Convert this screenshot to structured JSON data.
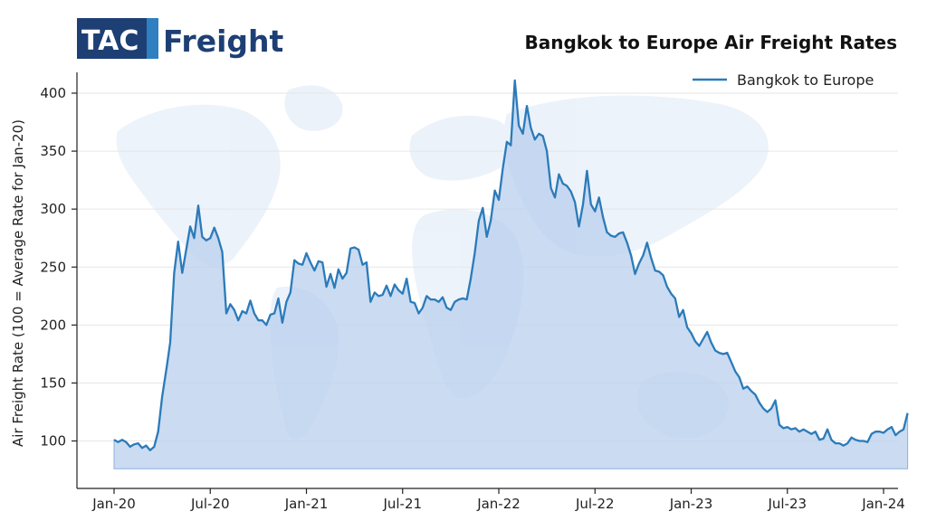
{
  "logo": {
    "tac": "TAC",
    "freight": "Freight",
    "box_color": "#1d3f74",
    "accent_color": "#2f7fc1"
  },
  "chart_data": {
    "type": "area",
    "title": "Bangkok to Europe Air Freight Rates",
    "xlabel": "",
    "ylabel": "Air Freight Rate (100 = Average Rate for Jan-20)",
    "x_ticks": [
      "Jan-20",
      "Jul-20",
      "Jan-21",
      "Jul-21",
      "Jan-22",
      "Jul-22",
      "Jan-23",
      "Jul-23",
      "Jan-24"
    ],
    "y_ticks": [
      100,
      150,
      200,
      250,
      300,
      350,
      400
    ],
    "ylim": [
      75,
      420
    ],
    "xlim_months": [
      -1,
      48
    ],
    "grid": true,
    "legend_position": "top-right",
    "line_color": "#2b7bb9",
    "fill_color": "#b9cfee",
    "series": [
      {
        "name": "Bangkok to Europe",
        "x_unit": "months since Jan-20",
        "points": [
          [
            0,
            101
          ],
          [
            0.25,
            99
          ],
          [
            0.5,
            101
          ],
          [
            0.75,
            99
          ],
          [
            1,
            95
          ],
          [
            1.25,
            97
          ],
          [
            1.5,
            98
          ],
          [
            1.75,
            94
          ],
          [
            2,
            96
          ],
          [
            2.25,
            92
          ],
          [
            2.5,
            95
          ],
          [
            2.75,
            108
          ],
          [
            3,
            138
          ],
          [
            3.3,
            165
          ],
          [
            3.5,
            185
          ],
          [
            3.75,
            245
          ],
          [
            4,
            272
          ],
          [
            4.25,
            245
          ],
          [
            4.5,
            265
          ],
          [
            4.75,
            285
          ],
          [
            5,
            275
          ],
          [
            5.25,
            303
          ],
          [
            5.5,
            276
          ],
          [
            5.75,
            273
          ],
          [
            6,
            275
          ],
          [
            6.25,
            284
          ],
          [
            6.5,
            275
          ],
          [
            6.75,
            263
          ],
          [
            7,
            210
          ],
          [
            7.25,
            218
          ],
          [
            7.5,
            213
          ],
          [
            7.75,
            204
          ],
          [
            8,
            212
          ],
          [
            8.25,
            210
          ],
          [
            8.5,
            221
          ],
          [
            8.75,
            210
          ],
          [
            9,
            204
          ],
          [
            9.25,
            204
          ],
          [
            9.5,
            200
          ],
          [
            9.75,
            209
          ],
          [
            10,
            210
          ],
          [
            10.25,
            223
          ],
          [
            10.5,
            202
          ],
          [
            10.75,
            220
          ],
          [
            11,
            228
          ],
          [
            11.25,
            256
          ],
          [
            11.5,
            253
          ],
          [
            11.75,
            252
          ],
          [
            12,
            262
          ],
          [
            12.25,
            254
          ],
          [
            12.5,
            247
          ],
          [
            12.75,
            255
          ],
          [
            13,
            254
          ],
          [
            13.25,
            233
          ],
          [
            13.5,
            244
          ],
          [
            13.75,
            232
          ],
          [
            14,
            248
          ],
          [
            14.25,
            240
          ],
          [
            14.5,
            245
          ],
          [
            14.75,
            266
          ],
          [
            15,
            267
          ],
          [
            15.25,
            265
          ],
          [
            15.5,
            252
          ],
          [
            15.75,
            254
          ],
          [
            16,
            220
          ],
          [
            16.25,
            228
          ],
          [
            16.5,
            225
          ],
          [
            16.75,
            226
          ],
          [
            17,
            234
          ],
          [
            17.25,
            225
          ],
          [
            17.5,
            235
          ],
          [
            17.75,
            230
          ],
          [
            18,
            227
          ],
          [
            18.25,
            240
          ],
          [
            18.5,
            220
          ],
          [
            18.75,
            219
          ],
          [
            19,
            210
          ],
          [
            19.25,
            215
          ],
          [
            19.5,
            225
          ],
          [
            19.75,
            222
          ],
          [
            20,
            222
          ],
          [
            20.25,
            220
          ],
          [
            20.5,
            224
          ],
          [
            20.75,
            215
          ],
          [
            21,
            213
          ],
          [
            21.25,
            220
          ],
          [
            21.5,
            222
          ],
          [
            21.75,
            223
          ],
          [
            22,
            222
          ],
          [
            22.25,
            240
          ],
          [
            22.5,
            262
          ],
          [
            22.75,
            290
          ],
          [
            23,
            301
          ],
          [
            23.25,
            276
          ],
          [
            23.5,
            290
          ],
          [
            23.75,
            316
          ],
          [
            24,
            308
          ],
          [
            24.25,
            335
          ],
          [
            24.5,
            358
          ],
          [
            24.75,
            355
          ],
          [
            25,
            411
          ],
          [
            25.25,
            372
          ],
          [
            25.5,
            365
          ],
          [
            25.75,
            389
          ],
          [
            26,
            370
          ],
          [
            26.25,
            360
          ],
          [
            26.5,
            365
          ],
          [
            26.75,
            363
          ],
          [
            27,
            350
          ],
          [
            27.25,
            318
          ],
          [
            27.5,
            310
          ],
          [
            27.75,
            330
          ],
          [
            28,
            322
          ],
          [
            28.25,
            320
          ],
          [
            28.5,
            315
          ],
          [
            28.75,
            306
          ],
          [
            29,
            285
          ],
          [
            29.25,
            304
          ],
          [
            29.5,
            333
          ],
          [
            29.75,
            304
          ],
          [
            30,
            298
          ],
          [
            30.25,
            310
          ],
          [
            30.5,
            293
          ],
          [
            30.75,
            280
          ],
          [
            31,
            277
          ],
          [
            31.25,
            276
          ],
          [
            31.5,
            279
          ],
          [
            31.75,
            280
          ],
          [
            32,
            271
          ],
          [
            32.25,
            260
          ],
          [
            32.5,
            244
          ],
          [
            32.75,
            253
          ],
          [
            33,
            260
          ],
          [
            33.25,
            271
          ],
          [
            33.5,
            258
          ],
          [
            33.75,
            247
          ],
          [
            34,
            246
          ],
          [
            34.25,
            243
          ],
          [
            34.5,
            233
          ],
          [
            34.75,
            227
          ],
          [
            35,
            223
          ],
          [
            35.25,
            207
          ],
          [
            35.5,
            213
          ],
          [
            35.75,
            198
          ],
          [
            36,
            193
          ],
          [
            36.25,
            186
          ],
          [
            36.5,
            182
          ],
          [
            36.75,
            188
          ],
          [
            37,
            194
          ],
          [
            37.25,
            185
          ],
          [
            37.5,
            178
          ],
          [
            37.75,
            176
          ],
          [
            38,
            175
          ],
          [
            38.25,
            176
          ],
          [
            38.5,
            168
          ],
          [
            38.75,
            160
          ],
          [
            39,
            155
          ],
          [
            39.25,
            145
          ],
          [
            39.5,
            147
          ],
          [
            39.75,
            143
          ],
          [
            40,
            140
          ],
          [
            40.25,
            133
          ],
          [
            40.5,
            128
          ],
          [
            40.75,
            125
          ],
          [
            41,
            128
          ],
          [
            41.25,
            135
          ],
          [
            41.5,
            114
          ],
          [
            41.75,
            111
          ],
          [
            42,
            112
          ],
          [
            42.25,
            110
          ],
          [
            42.5,
            111
          ],
          [
            42.75,
            108
          ],
          [
            43,
            110
          ],
          [
            43.25,
            108
          ],
          [
            43.5,
            106
          ],
          [
            43.75,
            108
          ],
          [
            44,
            101
          ],
          [
            44.25,
            102
          ],
          [
            44.5,
            110
          ],
          [
            44.75,
            101
          ],
          [
            45,
            98
          ],
          [
            45.25,
            98
          ],
          [
            45.5,
            96
          ],
          [
            45.75,
            98
          ],
          [
            46,
            103
          ],
          [
            46.25,
            101
          ],
          [
            46.5,
            100
          ],
          [
            46.75,
            100
          ],
          [
            47,
            99
          ],
          [
            47.25,
            106
          ],
          [
            47.5,
            108
          ],
          [
            47.75,
            108
          ],
          [
            48,
            107
          ],
          [
            48.25,
            110
          ],
          [
            48.5,
            112
          ],
          [
            48.75,
            105
          ],
          [
            49,
            108
          ],
          [
            49.25,
            110
          ],
          [
            49.5,
            124
          ]
        ]
      }
    ]
  }
}
